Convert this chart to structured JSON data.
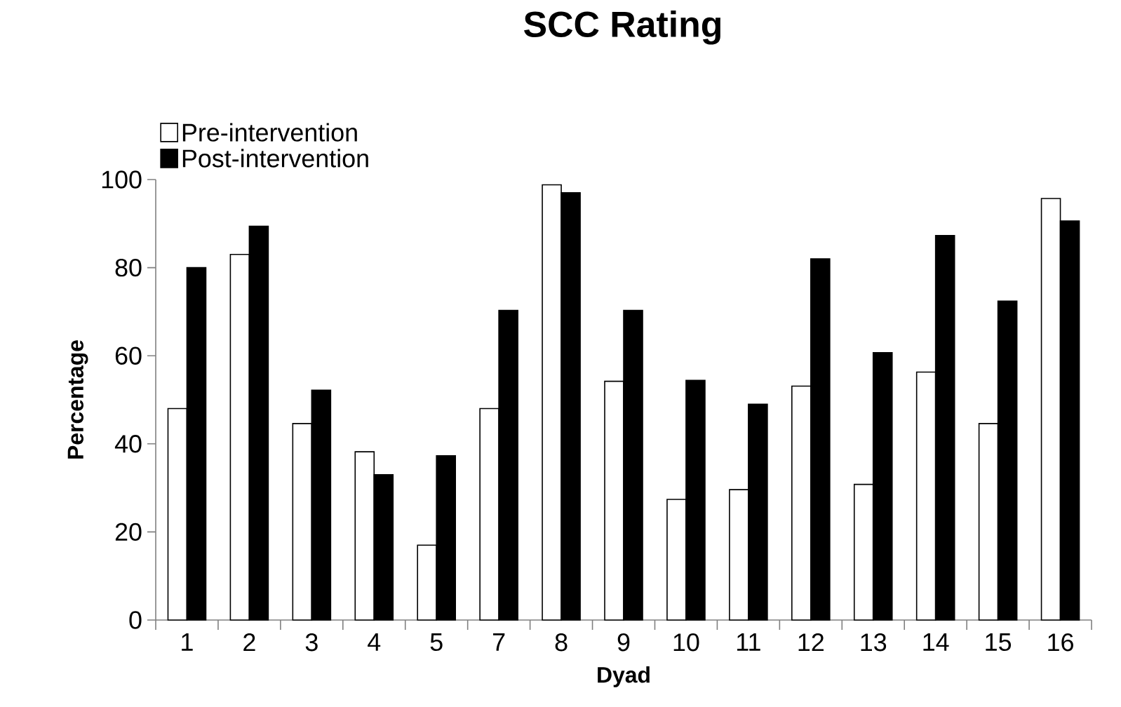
{
  "chart_data": {
    "type": "bar",
    "title": "SCC Rating",
    "xlabel": "Dyad",
    "ylabel": "Percentage",
    "categories": [
      "1",
      "2",
      "3",
      "4",
      "5",
      "7",
      "8",
      "9",
      "10",
      "11",
      "12",
      "13",
      "14",
      "15",
      "16"
    ],
    "series": [
      {
        "name": "Pre-intervention",
        "color": "#ffffff",
        "values": [
          48,
          83,
          44.6,
          38.2,
          17,
          48,
          98.8,
          54.2,
          27.4,
          29.6,
          53.1,
          30.8,
          56.3,
          44.6,
          95.7
        ]
      },
      {
        "name": "Post-intervention",
        "color": "#000000",
        "values": [
          80,
          89.4,
          52.2,
          33,
          37.3,
          70.3,
          97,
          70.3,
          54.4,
          49,
          82,
          60.7,
          87.3,
          72.4,
          90.6
        ]
      }
    ],
    "ylim": [
      0,
      100
    ],
    "yticks": [
      0,
      20,
      40,
      60,
      80,
      100
    ],
    "grid": false,
    "legend": "top left"
  }
}
